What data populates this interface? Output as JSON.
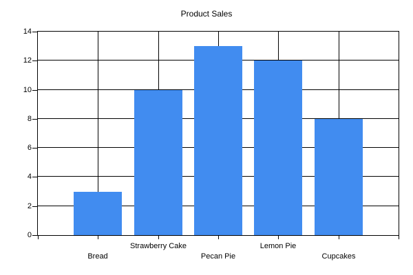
{
  "chart_data": {
    "type": "bar",
    "title": "Product Sales",
    "categories": [
      "Bread",
      "Strawberry Cake",
      "Pecan Pie",
      "Lemon Pie",
      "Cupcakes"
    ],
    "values": [
      3,
      10,
      13,
      12,
      8
    ],
    "xlabel": "",
    "ylabel": "",
    "ylim": [
      0,
      14
    ],
    "yticks": [
      0,
      2,
      4,
      6,
      8,
      10,
      12,
      14
    ],
    "grid": "both",
    "legend": "none",
    "bar_color": "#418CF0",
    "axis_color": "#000000",
    "text_color": "#000000",
    "background_color": "#FFFFFF"
  }
}
